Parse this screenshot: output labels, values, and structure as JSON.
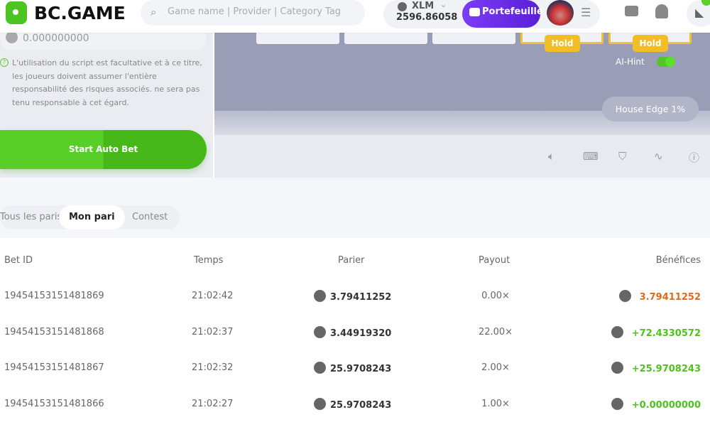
{
  "header": {
    "logo": "BC.GAME",
    "search_placeholder": "Game name | Provider | Category Tag",
    "currency": "XLM",
    "balance": "2596.86058",
    "wallet_label": "Portefeuille"
  },
  "left_panel": {
    "amount": "0.000000000",
    "info_text": "L'utilisation du script est facultative et à ce titre, les joueurs doivent assumer l'entière responsabilité des risques associés. ne sera pas tenu responsable à cet égard.",
    "start_button": "Start Auto Bet"
  },
  "game": {
    "hold_labels": [
      "Hold",
      "Hold"
    ],
    "ai_hint_label": "AI-Hint",
    "ai_hint_on": true,
    "house_edge": "House Edge 1%"
  },
  "tabs": [
    {
      "label": "Tous les paris"
    },
    {
      "label": "Mon pari",
      "active": true
    },
    {
      "label": "Contest"
    }
  ],
  "table": {
    "headers": [
      "Bet ID",
      "Temps",
      "Parier",
      "Payout",
      "Bénéfices"
    ],
    "rows": [
      {
        "id": "1945415315148186​9",
        "time": "21:02:42",
        "bet": "3.79411252",
        "payout": "0.00×",
        "profit": "3.79411252",
        "profit_color": "#e06a1c"
      },
      {
        "id": "19454153151481868",
        "time": "21:02:37",
        "bet": "3.44919320",
        "payout": "22.00×",
        "profit": "+72.4330572",
        "profit_color": "#4fc21d"
      },
      {
        "id": "19454153151481867",
        "time": "21:02:32",
        "bet": "25.9708243",
        "payout": "2.00×",
        "profit": "+25.9708243",
        "profit_color": "#4fc21d"
      },
      {
        "id": "19454153151481866",
        "time": "21:02:27",
        "bet": "25.9708243",
        "payout": "1.00×",
        "profit": "+0.00000000",
        "profit_color": "#4fc21d"
      }
    ]
  },
  "colors": {
    "accent_green": "#57cf26",
    "wallet_purple": "#6a2ce8",
    "hold_gold": "#f2bd25"
  }
}
